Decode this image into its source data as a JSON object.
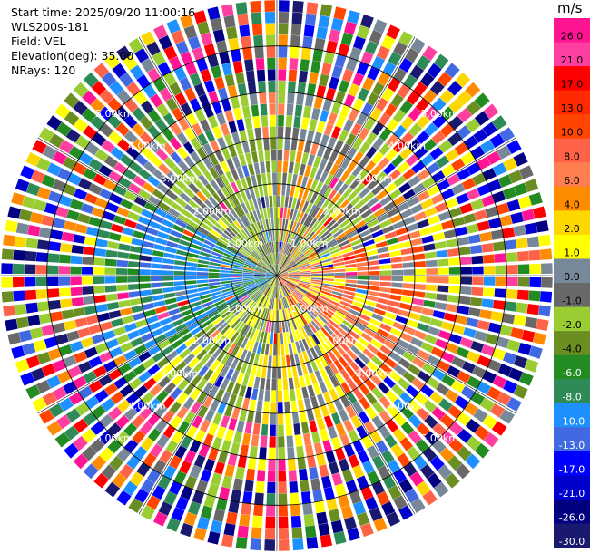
{
  "header": {
    "start_time": "Start time: 2025/09/20 11:00:16",
    "station": "WLS200s-181",
    "field": "Field: VEL",
    "elevation": "Elevation(deg): 35.00",
    "nrays": "NRays: 120"
  },
  "chart_data": {
    "type": "ppi",
    "field": "VEL",
    "elevation_deg": 35.0,
    "n_rays": 120,
    "max_range_km": 6.0,
    "range_rings_km": [
      1.0,
      2.0,
      3.0,
      4.0,
      5.0
    ],
    "ring_labels": [
      "1.00km",
      "2.00km",
      "3.00km",
      "4.00km",
      "5.00km"
    ],
    "colorbar": {
      "unit": "m/s",
      "ticks": [
        "26.0",
        "21.0",
        "17.0",
        "13.0",
        "10.0",
        "8.0",
        "6.0",
        "4.0",
        "2.0",
        "1.0",
        "0.0",
        "-1.0",
        "-2.0",
        "-4.0",
        "-6.0",
        "-8.0",
        "-10.0",
        "-13.0",
        "-17.0",
        "-21.0",
        "-26.0",
        "-30.0"
      ],
      "colors": [
        "#ff1493",
        "#ff3fa0",
        "#ff0000",
        "#ff2a00",
        "#ff4500",
        "#ff6347",
        "#ff7f50",
        "#ff8c00",
        "#ffd700",
        "#ffff00",
        "#778899",
        "#696969",
        "#9acd32",
        "#6b8e23",
        "#228b22",
        "#2e8b57",
        "#1e90ff",
        "#4169e1",
        "#0000ff",
        "#0000cd",
        "#000080",
        "#191970"
      ]
    }
  }
}
